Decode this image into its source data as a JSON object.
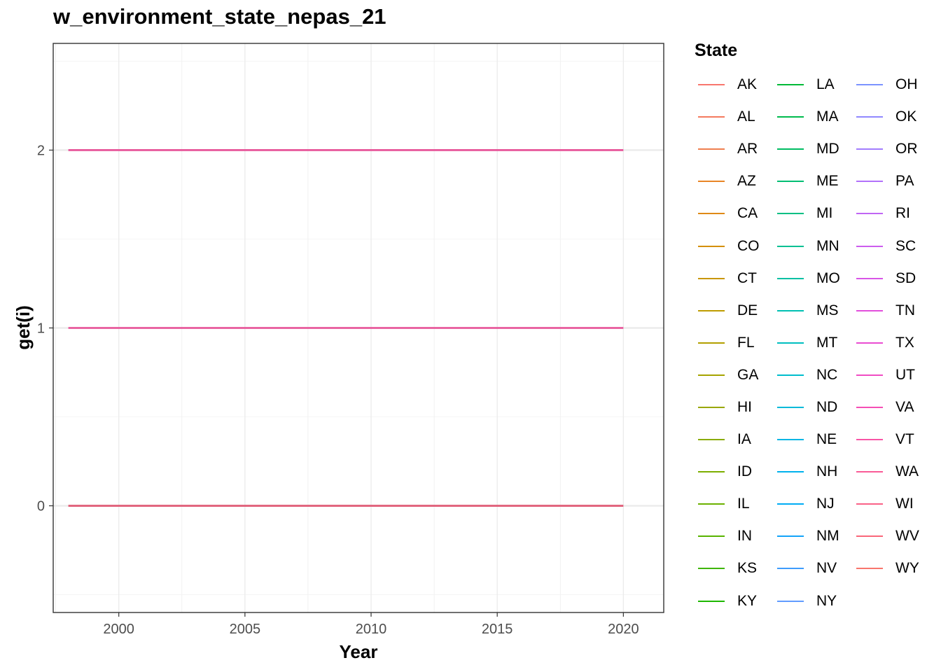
{
  "chart_data": {
    "type": "line",
    "title": "w_environment_state_nepas_21",
    "xlabel": "Year",
    "ylabel": "get(i)",
    "xlim": [
      1997.4,
      2021.6
    ],
    "ylim": [
      -0.6,
      2.6
    ],
    "x_ticks": [
      2000,
      2005,
      2010,
      2015,
      2020
    ],
    "x_tick_labels": [
      "2000",
      "2005",
      "2010",
      "2015",
      "2020"
    ],
    "y_ticks": [
      0,
      1,
      2
    ],
    "y_tick_labels": [
      "0",
      "1",
      "2"
    ],
    "grid": true,
    "legend_title": "State",
    "legend_position": "right",
    "x_range": [
      1998,
      2020
    ],
    "series": [
      {
        "name": "AK",
        "color": "#F8766D"
      },
      {
        "name": "AL",
        "color": "#F47A5E"
      },
      {
        "name": "AR",
        "color": "#EF7F4F"
      },
      {
        "name": "AZ",
        "color": "#E88526"
      },
      {
        "name": "CA",
        "color": "#DF8A16"
      },
      {
        "name": "CO",
        "color": "#D48F00"
      },
      {
        "name": "CT",
        "color": "#C99600"
      },
      {
        "name": "DE",
        "color": "#BE9C00"
      },
      {
        "name": "FL",
        "color": "#B3A000"
      },
      {
        "name": "GA",
        "color": "#A6A400"
      },
      {
        "name": "HI",
        "color": "#99A800"
      },
      {
        "name": "IA",
        "color": "#8AAB00"
      },
      {
        "name": "ID",
        "color": "#7CAE00"
      },
      {
        "name": "IL",
        "color": "#6BB100"
      },
      {
        "name": "IN",
        "color": "#58B400"
      },
      {
        "name": "KS",
        "color": "#3FB600"
      },
      {
        "name": "KY",
        "color": "#1EB800"
      },
      {
        "name": "LA",
        "color": "#00BA38"
      },
      {
        "name": "MA",
        "color": "#00BB4E"
      },
      {
        "name": "MD",
        "color": "#00BC62"
      },
      {
        "name": "ME",
        "color": "#00BE73"
      },
      {
        "name": "MI",
        "color": "#00BF83"
      },
      {
        "name": "MN",
        "color": "#00C093"
      },
      {
        "name": "MO",
        "color": "#00C0A3"
      },
      {
        "name": "MS",
        "color": "#00C0B2"
      },
      {
        "name": "MT",
        "color": "#00BFC0"
      },
      {
        "name": "NC",
        "color": "#00BDCD"
      },
      {
        "name": "ND",
        "color": "#00BAD9"
      },
      {
        "name": "NE",
        "color": "#00B6E4"
      },
      {
        "name": "NH",
        "color": "#00B1ED"
      },
      {
        "name": "NJ",
        "color": "#00ABF4"
      },
      {
        "name": "NM",
        "color": "#14A4F9"
      },
      {
        "name": "NV",
        "color": "#3E9CFC"
      },
      {
        "name": "NY",
        "color": "#619CFF"
      },
      {
        "name": "OH",
        "color": "#7B93FF"
      },
      {
        "name": "OK",
        "color": "#9088FF"
      },
      {
        "name": "OR",
        "color": "#A27DFE"
      },
      {
        "name": "PA",
        "color": "#B271FA"
      },
      {
        "name": "RI",
        "color": "#C066F4"
      },
      {
        "name": "SC",
        "color": "#CD5CEE"
      },
      {
        "name": "SD",
        "color": "#D855E6"
      },
      {
        "name": "TN",
        "color": "#E24FDC"
      },
      {
        "name": "TX",
        "color": "#EA4CD1"
      },
      {
        "name": "UT",
        "color": "#F04CC3"
      },
      {
        "name": "VA",
        "color": "#F54FB5"
      },
      {
        "name": "VT",
        "color": "#F855A6"
      },
      {
        "name": "WA",
        "color": "#FA5B97"
      },
      {
        "name": "WI",
        "color": "#FA6288"
      },
      {
        "name": "WV",
        "color": "#FA677A"
      },
      {
        "name": "WY",
        "color": "#F8766D"
      }
    ],
    "lines": [
      {
        "y": 2,
        "color": "#E85A9C"
      },
      {
        "y": 1,
        "color": "#E85A9C"
      },
      {
        "y": 0,
        "color": "#E0607A"
      }
    ]
  }
}
